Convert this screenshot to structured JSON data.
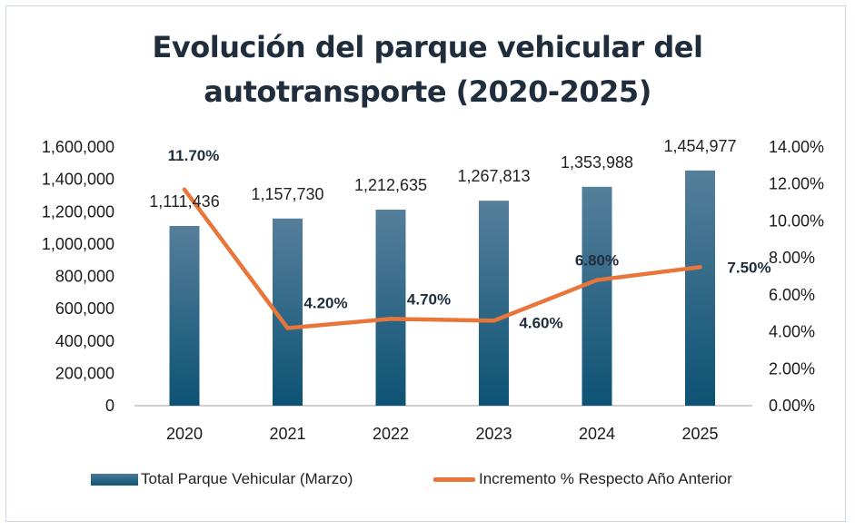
{
  "chart_data": {
    "type": "bar",
    "title": "Evolución del parque vehicular del autotransporte (2020-2025)",
    "title_lines": [
      "Evolución del parque vehicular del",
      "autotransporte (2020-2025)"
    ],
    "categories": [
      "2020",
      "2021",
      "2022",
      "2023",
      "2024",
      "2025"
    ],
    "series": [
      {
        "name": "Total Parque Vehicular (Marzo)",
        "type": "bar",
        "axis": "left",
        "values": [
          1111436,
          1157730,
          1212635,
          1267813,
          1353988,
          1454977
        ],
        "labels": [
          "1,111,436",
          "1,157,730",
          "1,212,635",
          "1,267,813",
          "1,353,988",
          "1,454,977"
        ],
        "color": "#1a5f80"
      },
      {
        "name": "Incremento % Respecto Año Anterior",
        "type": "line",
        "axis": "right",
        "values": [
          11.7,
          4.2,
          4.7,
          4.6,
          6.8,
          7.5
        ],
        "labels": [
          "11.70%",
          "4.20%",
          "4.70%",
          "4.60%",
          "6.80%",
          "7.50%"
        ],
        "color": "#e8763a"
      }
    ],
    "ylim_left": [
      0,
      1600000
    ],
    "ylim_right": [
      0,
      14
    ],
    "left_ticks": [
      "0",
      "200,000",
      "400,000",
      "600,000",
      "800,000",
      "1,000,000",
      "1,200,000",
      "1,400,000",
      "1,600,000"
    ],
    "right_ticks": [
      "0.00%",
      "2.00%",
      "4.00%",
      "6.00%",
      "8.00%",
      "10.00%",
      "12.00%",
      "14.00%"
    ],
    "legend_position": "bottom",
    "grid": false
  }
}
